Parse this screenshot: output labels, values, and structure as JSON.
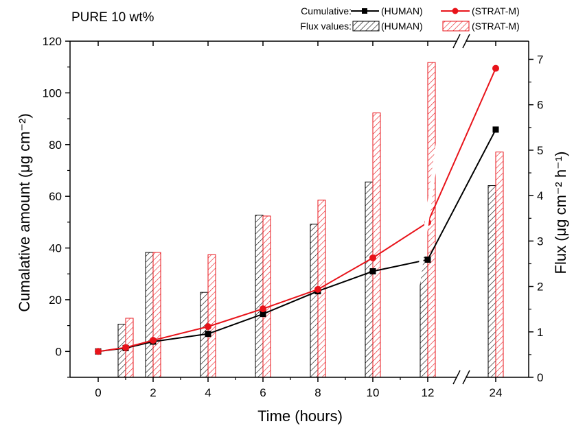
{
  "chart_data": {
    "type": "bar+line",
    "title": "PURE 10 wt%",
    "xlabel": "Time (hours)",
    "ylabel_left": "Cumalative amount (μg cm⁻²)",
    "ylabel_right": "Flux (μg cm⁻² h⁻¹)",
    "x_ticks": [
      "0",
      "2",
      "4",
      "6",
      "8",
      "10",
      "12",
      "24"
    ],
    "x_axis_break": "between 12 and 24",
    "ylim_left": [
      -10,
      120
    ],
    "ylim_right": [
      0,
      7.4
    ],
    "y_ticks_left": [
      0,
      20,
      40,
      60,
      80,
      100,
      120
    ],
    "y_ticks_right": [
      0,
      1,
      2,
      3,
      4,
      5,
      6,
      7
    ],
    "grid": false,
    "legend": {
      "position": "top-right",
      "row1_label": "Cumulative:",
      "row2_label": "Flux values:",
      "human": "(HUMAN)",
      "strat": "(STRAT-M)"
    },
    "colors": {
      "human": "#000000",
      "strat": "#e8131a"
    },
    "cumulative_series": [
      {
        "name": "(HUMAN)",
        "marker": "square",
        "x": [
          0,
          1,
          2,
          4,
          6,
          8,
          10,
          12,
          24
        ],
        "values": [
          0,
          1.3,
          3.8,
          6.8,
          14.5,
          23.3,
          31,
          35.5,
          85.8
        ]
      },
      {
        "name": "(STRAT-M)",
        "marker": "circle",
        "x": [
          0,
          1,
          2,
          4,
          6,
          8,
          10,
          12,
          24
        ],
        "values": [
          0,
          1.5,
          4.3,
          9.6,
          16.5,
          24,
          36.2,
          49.9,
          109.5
        ]
      }
    ],
    "flux_series": [
      {
        "name": "(HUMAN)",
        "x": [
          1,
          2,
          4,
          6,
          8,
          10,
          12,
          24
        ],
        "values": [
          1.17,
          2.75,
          1.87,
          3.57,
          3.37,
          4.3,
          2.64,
          4.22
        ]
      },
      {
        "name": "(STRAT-M)",
        "x": [
          1,
          2,
          4,
          6,
          8,
          10,
          12,
          24
        ],
        "values": [
          1.3,
          2.75,
          2.7,
          3.55,
          3.9,
          5.82,
          6.93,
          4.96
        ]
      }
    ]
  }
}
